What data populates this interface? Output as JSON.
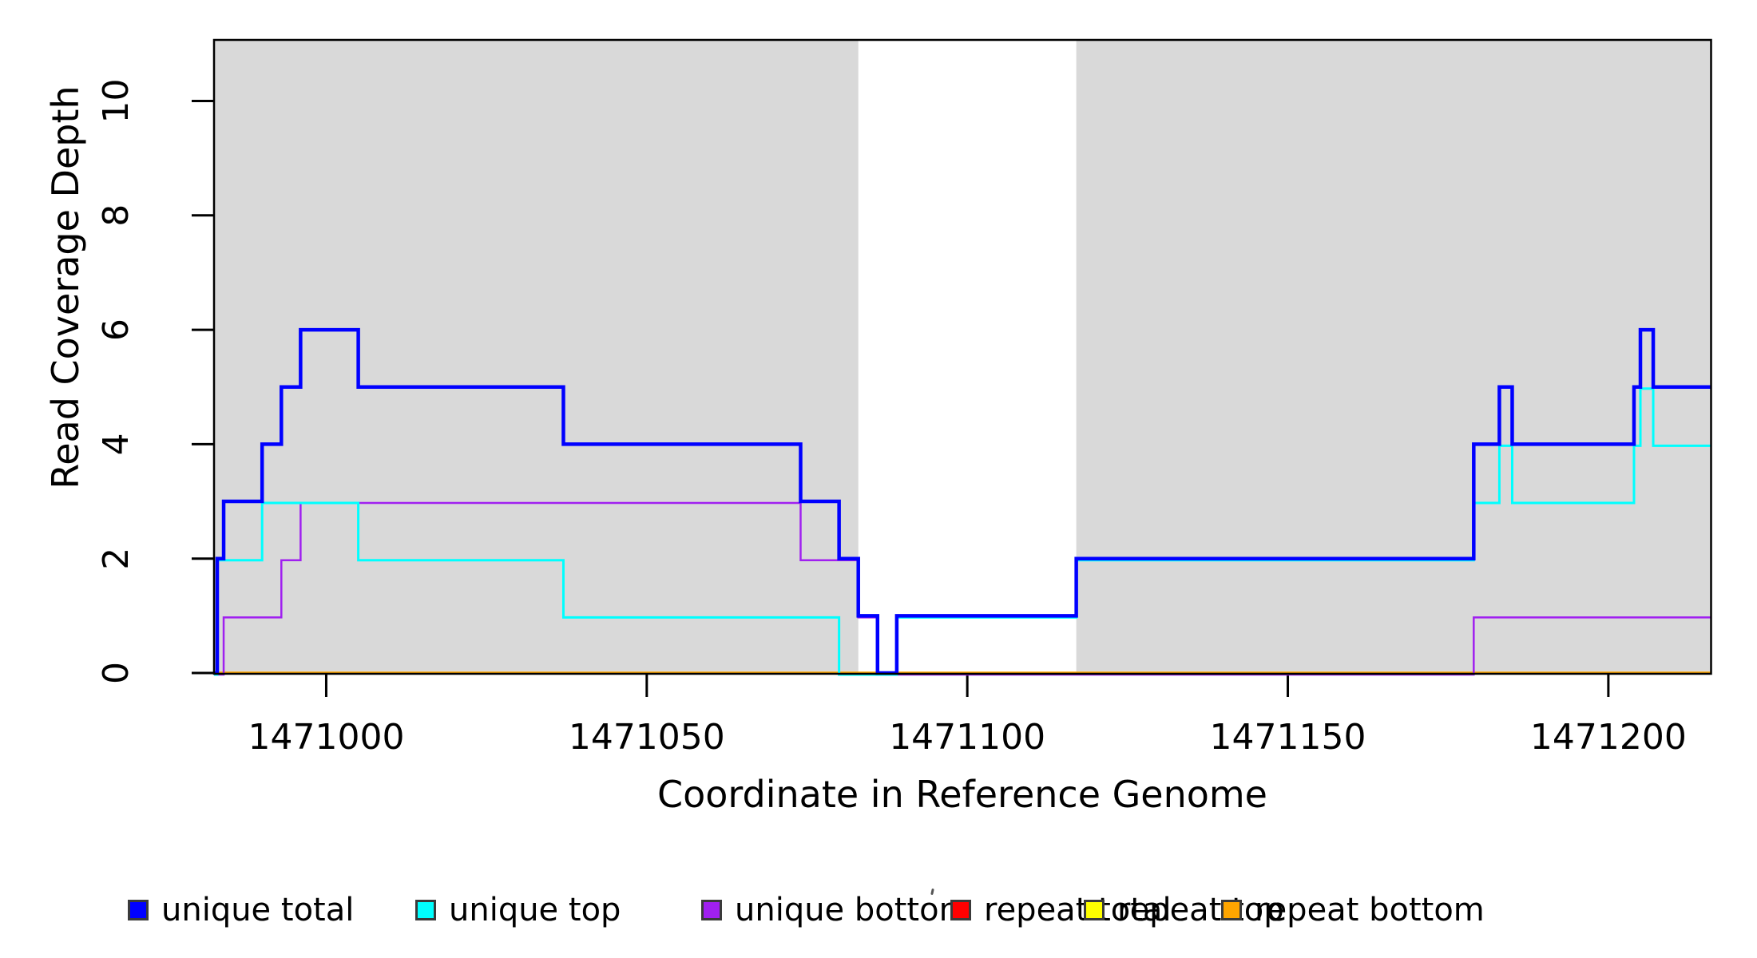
{
  "chart_data": {
    "type": "line",
    "subtype": "step",
    "xlabel": "Coordinate in Reference Genome",
    "ylabel": "Read Coverage Depth",
    "xlim": [
      1470982.5,
      1471216
    ],
    "ylim": [
      0,
      11.1
    ],
    "x_ticks": [
      1471000,
      1471050,
      1471100,
      1471150,
      1471200
    ],
    "x_tick_labels": [
      "1471000",
      "1471050",
      "1471100",
      "1471150",
      "1471200"
    ],
    "y_ticks": [
      0,
      2,
      4,
      6,
      8,
      10
    ],
    "y_tick_labels": [
      "0",
      "2",
      "4",
      "6",
      "8",
      "10"
    ],
    "grid": false,
    "background_color": "#FFFFFF",
    "shaded_region_color": "#D9D9D9",
    "shaded_regions": [
      [
        1470982.5,
        1471083
      ],
      [
        1471117,
        1471216
      ]
    ],
    "legend_position": "bottom-horizontal",
    "legend": [
      {
        "label": "unique total",
        "color": "#0000FF"
      },
      {
        "label": "unique top",
        "color": "#00FFFF"
      },
      {
        "label": "unique bottom",
        "color": "#A020F0"
      },
      {
        "label": "repeat total",
        "color": "#FF0000"
      },
      {
        "label": "repeat top",
        "color": "#FFFF00"
      },
      {
        "label": "repeat bottom",
        "color": "#FFA500"
      }
    ],
    "series": [
      {
        "name": "unique total",
        "color": "#0000FF",
        "width": 4.5,
        "steps": [
          [
            1470982.5,
            0
          ],
          [
            1470983,
            2
          ],
          [
            1470984,
            3
          ],
          [
            1470990,
            4
          ],
          [
            1470993,
            5
          ],
          [
            1470996,
            6
          ],
          [
            1471005,
            5
          ],
          [
            1471037,
            4
          ],
          [
            1471074,
            3
          ],
          [
            1471080,
            2
          ],
          [
            1471083,
            1
          ],
          [
            1471086,
            0
          ],
          [
            1471089,
            1
          ],
          [
            1471117,
            2
          ],
          [
            1471179,
            4
          ],
          [
            1471183,
            5
          ],
          [
            1471185,
            4
          ],
          [
            1471204,
            5
          ],
          [
            1471205,
            6
          ],
          [
            1471207,
            5
          ]
        ]
      },
      {
        "name": "unique top",
        "color": "#00FFFF",
        "width": 3,
        "steps": [
          [
            1470982.5,
            0
          ],
          [
            1470983,
            2
          ],
          [
            1470990,
            3
          ],
          [
            1471005,
            2
          ],
          [
            1471037,
            1
          ],
          [
            1471080,
            0
          ],
          [
            1471089,
            1
          ],
          [
            1471117,
            2
          ],
          [
            1471179,
            3
          ],
          [
            1471183,
            4
          ],
          [
            1471185,
            3
          ],
          [
            1471204,
            4
          ],
          [
            1471205,
            5
          ],
          [
            1471207,
            4
          ]
        ]
      },
      {
        "name": "unique bottom",
        "color": "#A020F0",
        "width": 2.5,
        "steps": [
          [
            1470982.5,
            0
          ],
          [
            1470984,
            1
          ],
          [
            1470993,
            2
          ],
          [
            1470996,
            3
          ],
          [
            1471074,
            2
          ],
          [
            1471083,
            1
          ],
          [
            1471086,
            0
          ],
          [
            1471179,
            1
          ]
        ]
      },
      {
        "name": "repeat total",
        "color": "#FF0000",
        "width": 2,
        "steps": [
          [
            1470982.5,
            0
          ]
        ]
      },
      {
        "name": "repeat top",
        "color": "#FFFF00",
        "width": 2,
        "steps": [
          [
            1470982.5,
            0
          ]
        ]
      },
      {
        "name": "repeat bottom",
        "color": "#FFA500",
        "width": 3.5,
        "steps": [
          [
            1470982.5,
            0
          ]
        ]
      }
    ]
  }
}
